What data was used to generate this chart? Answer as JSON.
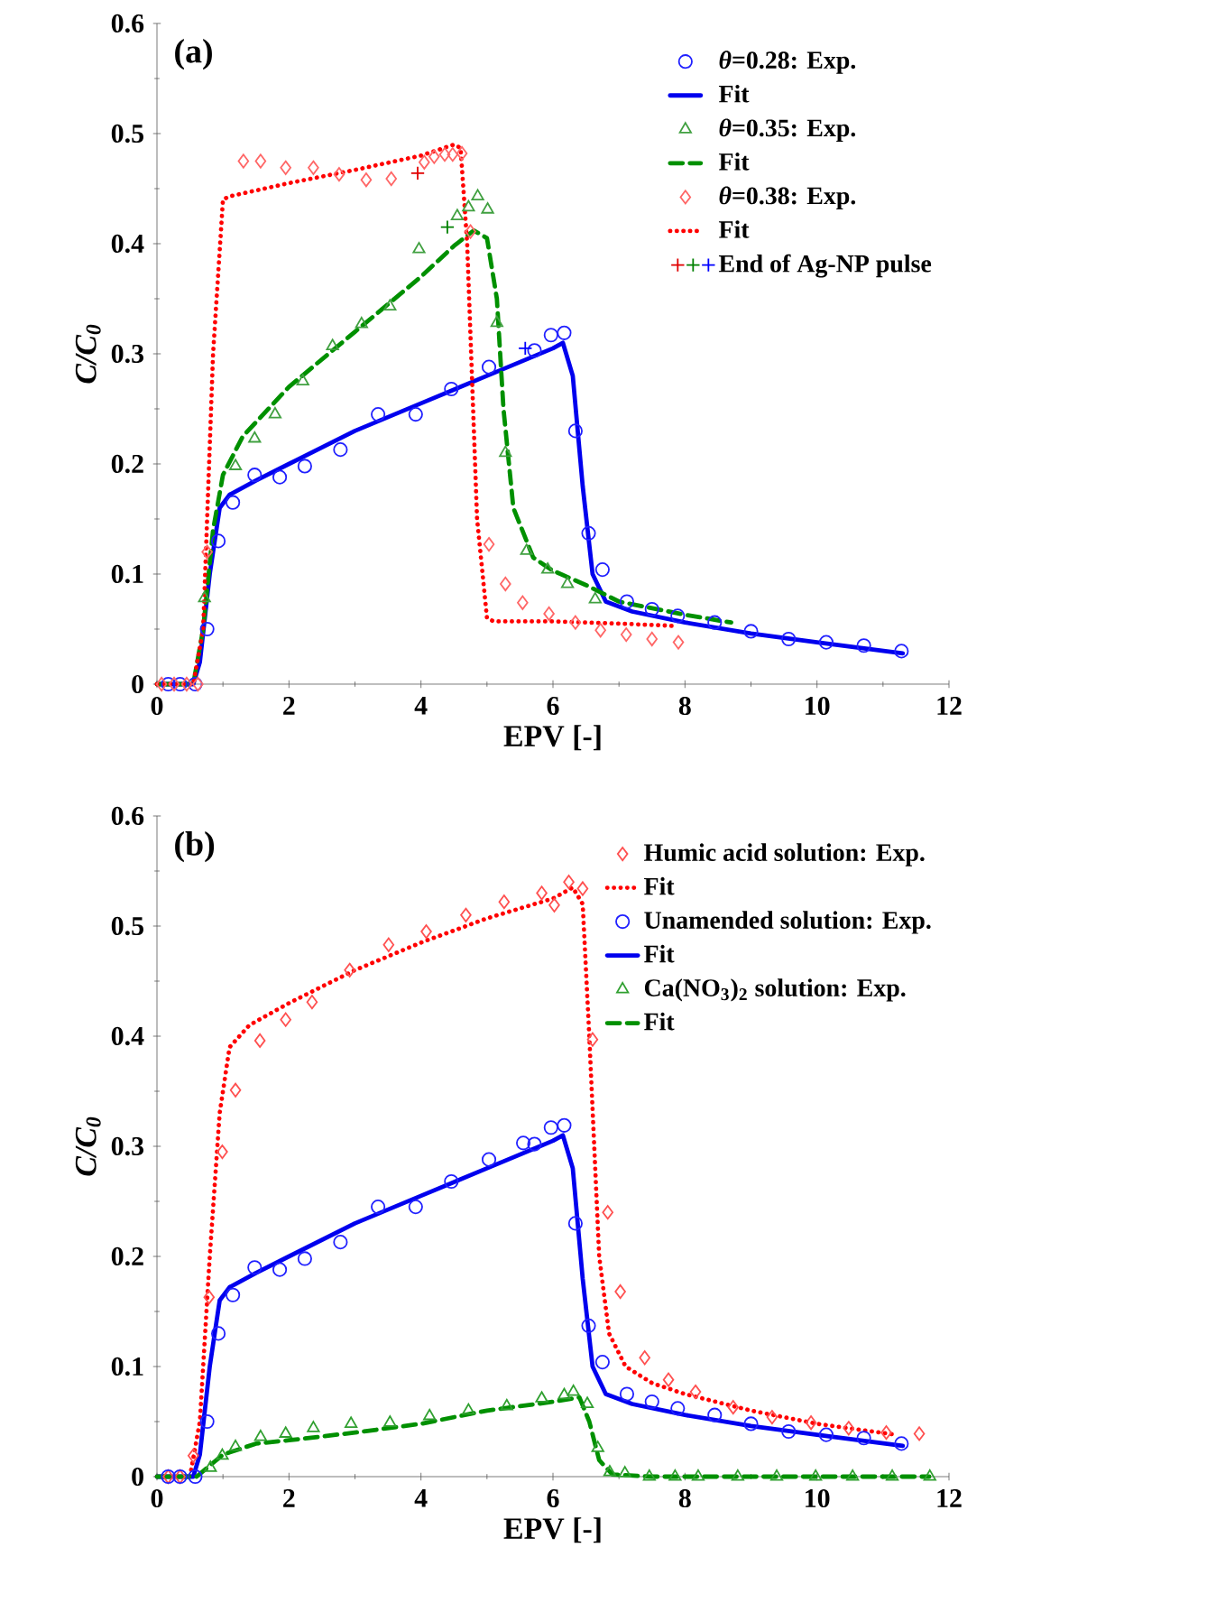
{
  "chart_data": [
    {
      "type": "line",
      "xlabel": "EPV [-]",
      "ylabel": "C/C$_{0}$",
      "annotations": [
        "(a)"
      ],
      "xlim": [
        0,
        12
      ],
      "ylim": [
        0,
        0.6
      ],
      "xticks": [
        0,
        2,
        4,
        6,
        8,
        10,
        12
      ],
      "yticks": [
        0,
        0.1,
        0.2,
        0.3,
        0.4,
        0.5,
        0.6
      ],
      "legend": "top right",
      "series": [
        {
          "name": "*θ*=0.28: Exp.",
          "type": "scatter",
          "marker": "circle",
          "color": "#2020ff",
          "x": [
            0.17,
            0.35,
            0.58,
            0.76,
            0.93,
            1.15,
            1.48,
            1.86,
            2.24,
            2.78,
            3.35,
            3.92,
            4.46,
            5.03,
            5.72,
            5.97,
            6.17,
            6.34,
            6.54,
            6.75,
            7.12,
            7.5,
            7.89,
            8.45,
            9.0,
            9.57,
            10.14,
            10.71,
            11.28
          ],
          "values": [
            0,
            0,
            0,
            0.05,
            0.13,
            0.165,
            0.19,
            0.188,
            0.198,
            0.213,
            0.245,
            0.245,
            0.268,
            0.288,
            0.303,
            0.317,
            0.319,
            0.23,
            0.137,
            0.104,
            0.075,
            0.068,
            0.062,
            0.056,
            0.048,
            0.041,
            0.038,
            0.035,
            0.03
          ]
        },
        {
          "name": "Fit",
          "type": "line",
          "line_style": "solid",
          "color": "#0000ee",
          "x": [
            0,
            0.55,
            0.65,
            0.8,
            0.95,
            1.1,
            1.5,
            2,
            3,
            4,
            5,
            6,
            6.15,
            6.3,
            6.45,
            6.6,
            6.8,
            7.2,
            8,
            9,
            10,
            11.3
          ],
          "values": [
            0,
            0,
            0.02,
            0.1,
            0.16,
            0.172,
            0.185,
            0.2,
            0.23,
            0.255,
            0.28,
            0.305,
            0.31,
            0.28,
            0.18,
            0.1,
            0.075,
            0.066,
            0.056,
            0.046,
            0.038,
            0.028
          ]
        },
        {
          "name": "*θ*=0.35: Exp.",
          "type": "scatter",
          "marker": "triangle",
          "color": "#40a040",
          "x": [
            0.72,
            1.19,
            1.48,
            1.79,
            2.21,
            2.66,
            3.1,
            3.53,
            3.97,
            4.55,
            4.72,
            4.86,
            5.01,
            5.15,
            5.28,
            5.6,
            5.92,
            6.22,
            6.64
          ],
          "values": [
            0.078,
            0.198,
            0.223,
            0.245,
            0.275,
            0.307,
            0.327,
            0.343,
            0.395,
            0.425,
            0.433,
            0.443,
            0.431,
            0.328,
            0.21,
            0.121,
            0.104,
            0.091,
            0.077
          ]
        },
        {
          "name": "Fit",
          "type": "line",
          "line_style": "dashed",
          "color": "#009000",
          "x": [
            0,
            0.55,
            0.7,
            0.85,
            1,
            1.3,
            2,
            3,
            4,
            4.5,
            4.8,
            5.0,
            5.15,
            5.25,
            5.4,
            5.7,
            6,
            6.5,
            7,
            8,
            8.7
          ],
          "values": [
            0,
            0,
            0.05,
            0.14,
            0.19,
            0.225,
            0.27,
            0.32,
            0.37,
            0.398,
            0.412,
            0.405,
            0.35,
            0.25,
            0.16,
            0.115,
            0.103,
            0.09,
            0.075,
            0.063,
            0.056
          ]
        },
        {
          "name": "*θ*=0.38: Exp.",
          "type": "scatter",
          "marker": "diamond",
          "color": "#ff6666",
          "x": [
            0.07,
            0.26,
            0.45,
            0.62,
            0.76,
            1.31,
            1.57,
            1.95,
            2.37,
            2.76,
            3.17,
            3.55,
            4.05,
            4.2,
            4.36,
            4.48,
            4.62,
            4.75,
            5.03,
            5.28,
            5.54,
            5.94,
            6.34,
            6.72,
            7.11,
            7.5,
            7.9
          ],
          "values": [
            0,
            0,
            0,
            0,
            0.12,
            0.475,
            0.475,
            0.469,
            0.469,
            0.463,
            0.458,
            0.459,
            0.474,
            0.479,
            0.481,
            0.481,
            0.482,
            0.411,
            0.127,
            0.091,
            0.074,
            0.064,
            0.056,
            0.049,
            0.045,
            0.041,
            0.038
          ]
        },
        {
          "name": "Fit",
          "type": "line",
          "line_style": "dotted",
          "color": "#ff0000",
          "x": [
            0,
            0.55,
            0.7,
            0.85,
            1,
            1.1,
            2,
            3,
            4,
            4.5,
            4.6,
            4.7,
            4.85,
            5,
            5.1,
            6,
            7,
            7.8
          ],
          "values": [
            0,
            0,
            0.05,
            0.3,
            0.44,
            0.443,
            0.455,
            0.467,
            0.48,
            0.49,
            0.487,
            0.4,
            0.15,
            0.06,
            0.057,
            0.057,
            0.055,
            0.053
          ]
        },
        {
          "name": "End of Ag-NP pulse",
          "type": "scatter",
          "marker": "cross",
          "colors": [
            "#e00000",
            "#008000",
            "#0000ff"
          ],
          "x": [
            3.95,
            4.4,
            5.58
          ],
          "values": [
            0.464,
            0.415,
            0.305
          ]
        }
      ]
    },
    {
      "type": "line",
      "xlabel": "EPV [-]",
      "ylabel": "C/C$_{0}$",
      "annotations": [
        "(b)"
      ],
      "xlim": [
        0,
        12
      ],
      "ylim": [
        0,
        0.6
      ],
      "xticks": [
        0,
        2,
        4,
        6,
        8,
        10,
        12
      ],
      "yticks": [
        0,
        0.1,
        0.2,
        0.3,
        0.4,
        0.5,
        0.6
      ],
      "legend": "top right",
      "series": [
        {
          "name": "Humic acid solution: Exp.",
          "type": "scatter",
          "marker": "diamond",
          "color": "#ff5050",
          "x": [
            0.17,
            0.35,
            0.55,
            0.79,
            0.99,
            1.19,
            1.56,
            1.95,
            2.35,
            2.92,
            3.51,
            4.08,
            4.68,
            5.26,
            5.83,
            6.02,
            6.24,
            6.45,
            6.6,
            6.83,
            7.02,
            7.39,
            7.75,
            8.16,
            8.73,
            9.32,
            9.91,
            10.48,
            11.05,
            11.55
          ],
          "values": [
            0,
            0,
            0.019,
            0.163,
            0.295,
            0.351,
            0.396,
            0.415,
            0.431,
            0.46,
            0.483,
            0.495,
            0.51,
            0.522,
            0.53,
            0.519,
            0.54,
            0.534,
            0.397,
            0.24,
            0.168,
            0.108,
            0.088,
            0.077,
            0.063,
            0.054,
            0.049,
            0.044,
            0.04,
            0.039
          ]
        },
        {
          "name": "Fit",
          "type": "line",
          "line_style": "dotted",
          "color": "#ff0000",
          "x": [
            0,
            0.5,
            0.65,
            0.8,
            0.95,
            1.1,
            1.4,
            2,
            3,
            4,
            5,
            6,
            6.3,
            6.45,
            6.55,
            6.7,
            6.85,
            7.1,
            7.5,
            8,
            9,
            10,
            11.2
          ],
          "values": [
            0,
            0,
            0.05,
            0.2,
            0.33,
            0.39,
            0.41,
            0.43,
            0.46,
            0.485,
            0.507,
            0.525,
            0.535,
            0.52,
            0.4,
            0.2,
            0.13,
            0.1,
            0.085,
            0.075,
            0.06,
            0.048,
            0.038
          ]
        },
        {
          "name": "Unamended solution: Exp.",
          "type": "scatter",
          "marker": "circle",
          "color": "#2020ff",
          "x": [
            0.17,
            0.35,
            0.58,
            0.76,
            0.93,
            1.15,
            1.48,
            1.86,
            2.24,
            2.78,
            3.35,
            3.92,
            4.46,
            5.03,
            5.55,
            5.72,
            5.97,
            6.17,
            6.34,
            6.54,
            6.75,
            7.12,
            7.5,
            7.89,
            8.45,
            9.0,
            9.57,
            10.14,
            10.71,
            11.28
          ],
          "values": [
            0,
            0,
            0,
            0.05,
            0.13,
            0.165,
            0.19,
            0.188,
            0.198,
            0.213,
            0.245,
            0.245,
            0.268,
            0.288,
            0.303,
            0.302,
            0.317,
            0.319,
            0.23,
            0.137,
            0.104,
            0.075,
            0.068,
            0.062,
            0.056,
            0.048,
            0.041,
            0.038,
            0.035,
            0.03
          ]
        },
        {
          "name": "Fit",
          "type": "line",
          "line_style": "solid",
          "color": "#0000ee",
          "x": [
            0,
            0.55,
            0.65,
            0.8,
            0.95,
            1.1,
            1.5,
            2,
            3,
            4,
            5,
            6,
            6.15,
            6.3,
            6.45,
            6.6,
            6.8,
            7.2,
            8,
            9,
            10,
            11.3
          ],
          "values": [
            0,
            0,
            0.02,
            0.1,
            0.16,
            0.172,
            0.185,
            0.2,
            0.23,
            0.255,
            0.28,
            0.305,
            0.31,
            0.28,
            0.18,
            0.1,
            0.075,
            0.066,
            0.056,
            0.046,
            0.038,
            0.028
          ]
        },
        {
          "name": "Ca(NO$_{3}$)$_{2}$ solution: Exp.",
          "type": "scatter",
          "marker": "triangle",
          "color": "#30a030",
          "x": [
            0.81,
            0.99,
            1.19,
            1.57,
            1.95,
            2.37,
            2.94,
            3.53,
            4.13,
            4.72,
            5.3,
            5.83,
            6.17,
            6.31,
            6.52,
            6.68,
            6.86,
            7.09,
            7.46,
            7.85,
            8.2,
            8.8,
            9.39,
            9.98,
            10.54,
            11.14,
            11.71
          ],
          "values": [
            0.008,
            0.019,
            0.027,
            0.036,
            0.039,
            0.044,
            0.048,
            0.049,
            0.055,
            0.06,
            0.064,
            0.071,
            0.074,
            0.077,
            0.066,
            0.026,
            0.004,
            0.003,
            0,
            0,
            0,
            0,
            0,
            0,
            0,
            0,
            0
          ]
        },
        {
          "name": "Fit",
          "type": "line",
          "line_style": "dashed",
          "color": "#009000",
          "x": [
            0,
            0.6,
            0.8,
            1,
            1.5,
            2,
            3,
            4,
            5,
            6,
            6.4,
            6.55,
            6.7,
            6.9,
            7.5,
            11.7
          ],
          "values": [
            0,
            0,
            0.01,
            0.02,
            0.03,
            0.033,
            0.04,
            0.048,
            0.06,
            0.068,
            0.072,
            0.05,
            0.015,
            0.002,
            0,
            0
          ]
        }
      ]
    }
  ]
}
